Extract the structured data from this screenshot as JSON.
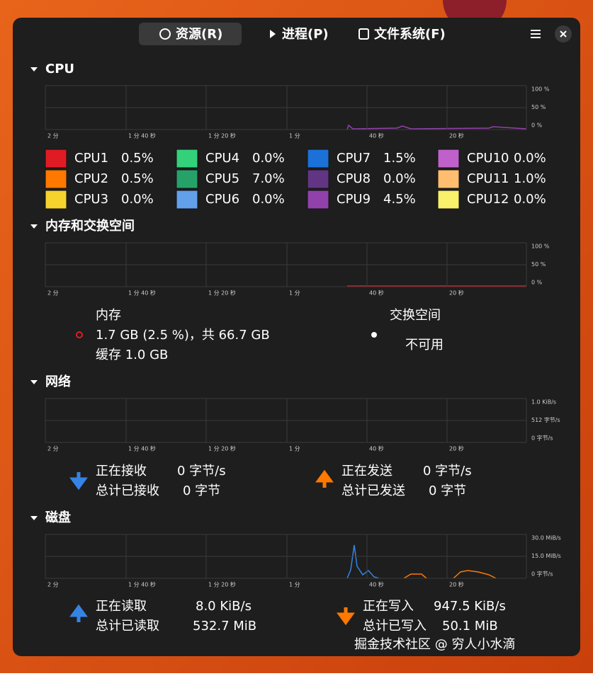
{
  "tabs": [
    "资源(R)",
    "进程(P)",
    "文件系统(F)"
  ],
  "cpu": {
    "title": "CPU",
    "x_labels": [
      "2 分",
      "1 分 40 秒",
      "1 分 20 秒",
      "1 分",
      "40 秒",
      "20 秒"
    ],
    "y_labels": [
      "100 %",
      "50 %",
      "0 %"
    ],
    "cpus": [
      {
        "name": "CPU1",
        "value": "0.5%",
        "color": "#e01b24"
      },
      {
        "name": "CPU2",
        "value": "0.5%",
        "color": "#ff7800"
      },
      {
        "name": "CPU3",
        "value": "0.0%",
        "color": "#f6d32d"
      },
      {
        "name": "CPU4",
        "value": "0.0%",
        "color": "#33d17a"
      },
      {
        "name": "CPU5",
        "value": "7.0%",
        "color": "#26a269"
      },
      {
        "name": "CPU6",
        "value": "0.0%",
        "color": "#62a0ea"
      },
      {
        "name": "CPU7",
        "value": "1.5%",
        "color": "#1c71d8"
      },
      {
        "name": "CPU8",
        "value": "0.0%",
        "color": "#613583"
      },
      {
        "name": "CPU9",
        "value": "4.5%",
        "color": "#9141ac"
      },
      {
        "name": "CPU10",
        "value": "0.0%",
        "color": "#c061cb"
      },
      {
        "name": "CPU11",
        "value": "1.0%",
        "color": "#ffbe6f"
      },
      {
        "name": "CPU12",
        "value": "0.0%",
        "color": "#f9f06b"
      }
    ]
  },
  "memory": {
    "title": "内存和交换空间",
    "x_labels": [
      "2 分",
      "1 分 40 秒",
      "1 分 20 秒",
      "1 分",
      "40 秒",
      "20 秒"
    ],
    "y_labels": [
      "100 %",
      "50 %",
      "0 %"
    ],
    "memory_label": "内存",
    "memory_detail": "1.7 GB (2.5 %)，共 66.7 GB",
    "cache": "缓存 1.0 GB",
    "swap_label": "交换空间",
    "swap_detail": "不可用"
  },
  "network": {
    "title": "网络",
    "x_labels": [
      "2 分",
      "1 分 40 秒",
      "1 分 20 秒",
      "1 分",
      "40 秒",
      "20 秒"
    ],
    "y_labels": [
      "1.0 KiB/s",
      "512 字节/s",
      "0 字节/s"
    ],
    "receiving_label": "正在接收",
    "receiving_value": "0 字节/s",
    "received_total_label": "总计已接收",
    "received_total_value": "0 字节",
    "sending_label": "正在发送",
    "sending_value": "0 字节/s",
    "sent_total_label": "总计已发送",
    "sent_total_value": "0 字节"
  },
  "disk": {
    "title": "磁盘",
    "x_labels": [
      "2 分",
      "1 分 40 秒",
      "1 分 20 秒",
      "1 分",
      "40 秒",
      "20 秒"
    ],
    "y_labels": [
      "30.0 MiB/s",
      "15.0 MiB/s",
      "0 字节/s"
    ],
    "reading_label": "正在读取",
    "reading_value": "8.0 KiB/s",
    "read_total_label": "总计已读取",
    "read_total_value": "532.7 MiB",
    "writing_label": "正在写入",
    "writing_value": "947.5 KiB/s",
    "written_total_label": "总计已写入",
    "written_total_value": "50.1 MiB"
  },
  "watermark": "掘金技术社区 @ 穷人小水滴"
}
